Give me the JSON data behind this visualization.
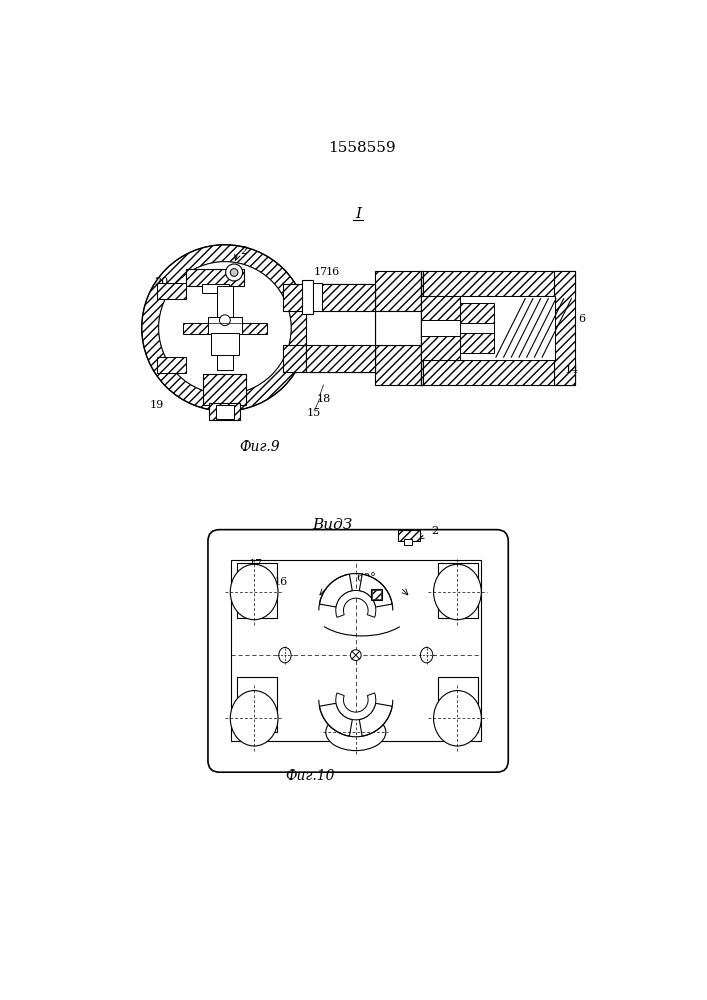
{
  "patent_number": "1558559",
  "fig9_label": "Фиг.9",
  "fig10_label": "Фиг.10",
  "view_label": "ВидЗ",
  "arrow_label": "I",
  "bg_color": "#ffffff",
  "line_color": "#000000",
  "hatch_color": "#000000"
}
